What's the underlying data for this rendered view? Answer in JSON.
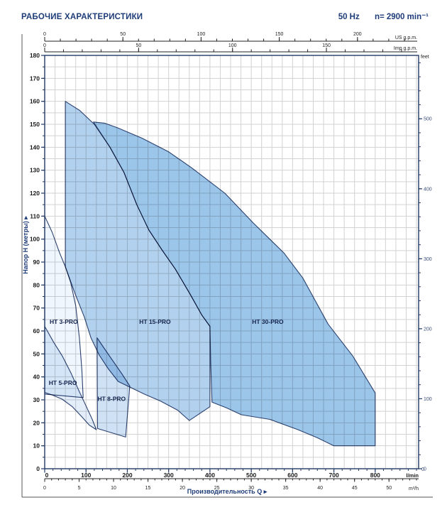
{
  "header": {
    "title": "РАБОЧИЕ ХАРАКТЕРИСТИКИ",
    "frequency": "50 Hz",
    "speed": "n= 2900 min⁻¹"
  },
  "chart_data": {
    "type": "area",
    "title": "РАБОЧИЕ ХАРАКТЕРИСТИКИ",
    "xlabel": "Производительность  Q  ▸",
    "ylabel": "Напор H (метры)  ▸",
    "grid": {
      "x_step_lmin": 25,
      "y_step_m": 5,
      "grid_on": true
    },
    "axes": {
      "bottom_lmin": {
        "unit": "l/min",
        "major_ticks": [
          0,
          100,
          200,
          300,
          400,
          500,
          600,
          700,
          800
        ],
        "minor_step": 20,
        "range": [
          0,
          905
        ]
      },
      "bottom_m3h": {
        "unit": "m³/h",
        "major_ticks": [
          0,
          5,
          10,
          15,
          20,
          25,
          30,
          35,
          40,
          45,
          50
        ],
        "minor_step": 1
      },
      "top_us_gpm": {
        "unit": "US g.p.m.",
        "major_ticks": [
          0,
          50,
          100,
          150,
          200
        ],
        "minor_step": 10
      },
      "top_imp_gpm": {
        "unit": "Imp g.p.m.",
        "major_ticks": [
          0,
          50,
          100,
          150
        ],
        "minor_step": 10
      },
      "left_metres": {
        "unit": "метры",
        "major_ticks": [
          0,
          10,
          20,
          30,
          40,
          50,
          60,
          70,
          80,
          90,
          100,
          110,
          120,
          130,
          140,
          150,
          160,
          170,
          180
        ],
        "minor_step": 5,
        "range": [
          0,
          180
        ]
      },
      "right_feet": {
        "unit": "feet",
        "major_ticks": [
          0,
          100,
          200,
          300,
          400,
          500
        ],
        "minor_step": 20
      }
    },
    "series": [
      {
        "name": "HT 3-PRO",
        "fill": "#f0f6fd",
        "label_pos": [
          46,
          64
        ],
        "points": [
          [
            0,
            110
          ],
          [
            18,
            103
          ],
          [
            36,
            94
          ],
          [
            50,
            88
          ],
          [
            63,
            81
          ],
          [
            75,
            71
          ],
          [
            84,
            57
          ],
          [
            90,
            43
          ],
          [
            93,
            31
          ],
          [
            0,
            32.5
          ]
        ]
      },
      {
        "name": "HT 5-PRO",
        "fill": "#e3eefa",
        "label_pos": [
          44,
          37.5
        ],
        "points": [
          [
            0,
            62
          ],
          [
            22,
            55
          ],
          [
            43,
            49
          ],
          [
            64,
            41.5
          ],
          [
            84,
            33.5
          ],
          [
            101,
            27
          ],
          [
            115,
            21.5
          ],
          [
            125,
            17
          ],
          [
            108,
            19
          ],
          [
            88,
            23
          ],
          [
            67,
            27
          ],
          [
            42,
            30.3
          ],
          [
            16,
            32.3
          ],
          [
            0,
            33.2
          ]
        ]
      },
      {
        "name": "HT 8-PRO",
        "fill": "#cfe2f5",
        "label_pos": [
          162,
          30.5
        ],
        "points": [
          [
            127,
            57
          ],
          [
            128,
            17.5
          ],
          [
            196,
            13.8
          ],
          [
            206,
            36
          ],
          [
            188,
            41
          ],
          [
            163,
            47.5
          ],
          [
            140,
            53.5
          ]
        ]
      },
      {
        "name": "HT 15-PRO",
        "fill": "#b2d1ee",
        "label_pos": [
          267,
          64
        ],
        "points": [
          [
            50,
            160
          ],
          [
            85,
            156
          ],
          [
            120,
            150
          ],
          [
            158,
            140
          ],
          [
            192,
            129
          ],
          [
            223,
            115
          ],
          [
            252,
            104
          ],
          [
            285,
            95
          ],
          [
            316,
            87
          ],
          [
            352,
            76
          ],
          [
            380,
            67
          ],
          [
            400,
            62
          ],
          [
            400,
            27
          ],
          [
            350,
            21
          ],
          [
            322,
            25.5
          ],
          [
            280,
            29.5
          ],
          [
            241,
            32.5
          ],
          [
            209,
            35.3
          ],
          [
            178,
            38
          ],
          [
            154,
            43.5
          ],
          [
            132,
            49.5
          ],
          [
            112,
            57
          ],
          [
            96,
            66
          ],
          [
            74,
            76
          ],
          [
            58,
            84
          ],
          [
            50,
            88
          ]
        ]
      },
      {
        "name": "HT 30-PRO",
        "fill": "#9bc5e9",
        "label_pos": [
          540,
          64
        ],
        "points": [
          [
            118,
            151
          ],
          [
            158,
            140
          ],
          [
            192,
            129
          ],
          [
            223,
            115
          ],
          [
            252,
            104
          ],
          [
            285,
            95
          ],
          [
            316,
            87
          ],
          [
            352,
            76
          ],
          [
            380,
            67
          ],
          [
            400,
            62
          ],
          [
            402,
            45
          ],
          [
            405,
            29
          ],
          [
            440,
            26.5
          ],
          [
            476,
            23.5
          ],
          [
            545,
            21.5
          ],
          [
            613,
            17
          ],
          [
            660,
            13.5
          ],
          [
            700,
            10
          ],
          [
            800,
            10
          ],
          [
            800,
            33
          ],
          [
            746,
            49
          ],
          [
            686,
            63
          ],
          [
            625,
            83
          ],
          [
            579,
            94
          ],
          [
            505,
            107
          ],
          [
            436,
            120
          ],
          [
            356,
            131
          ],
          [
            300,
            138
          ],
          [
            235,
            144
          ],
          [
            176,
            148.5
          ],
          [
            145,
            150.5
          ]
        ]
      }
    ],
    "region_stroke": "#2c4270"
  },
  "colors": {
    "accent_text": "#1e3c78",
    "axis_line": "#223a66",
    "scale_line": "#222222",
    "grid_line": "#d2d2d2",
    "feet_text": "#3a4e7a",
    "frame_line": "#555555"
  }
}
